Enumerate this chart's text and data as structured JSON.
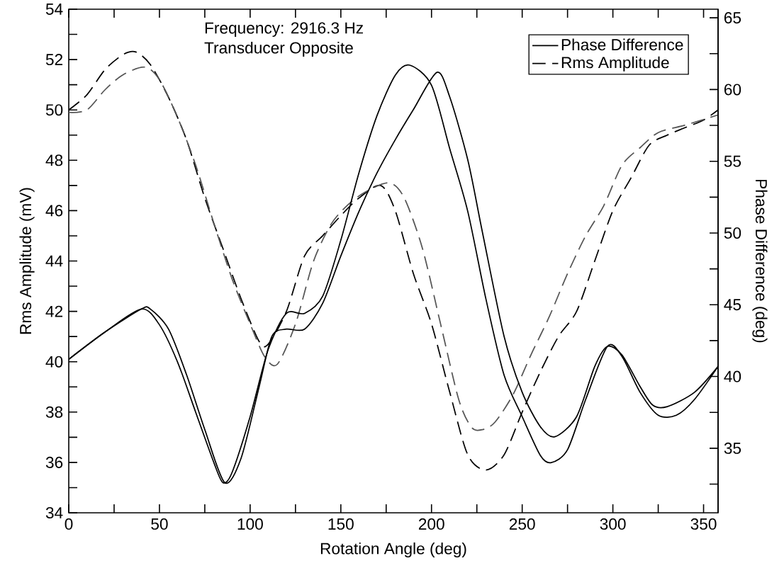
{
  "chart_data": {
    "type": "line",
    "xlabel": "Rotation Angle (deg)",
    "ylabel": "Rms Amplitude (mV)",
    "y2label": "Phase Difference (deg)",
    "annotations": [
      "Frequency:  2916.3 Hz",
      "Transducer Opposite"
    ],
    "xlim": [
      0,
      358
    ],
    "ylim": [
      34,
      54
    ],
    "y2lim": [
      30.5,
      65.6
    ],
    "xticks": [
      0,
      {
        "value": 25,
        "label": null
      },
      50,
      {
        "value": 75,
        "label": null
      },
      100,
      {
        "value": 125,
        "label": null
      },
      150,
      {
        "value": 175,
        "label": null
      },
      200,
      {
        "value": 225,
        "label": null
      },
      250,
      {
        "value": 275,
        "label": null
      },
      300,
      {
        "value": 325,
        "label": null
      },
      350
    ],
    "yticks": [
      34,
      {
        "value": 35,
        "label": null
      },
      36,
      {
        "value": 37,
        "label": null
      },
      38,
      {
        "value": 39,
        "label": null
      },
      40,
      {
        "value": 41,
        "label": null
      },
      42,
      {
        "value": 43,
        "label": null
      },
      44,
      {
        "value": 45,
        "label": null
      },
      46,
      {
        "value": 47,
        "label": null
      },
      48,
      {
        "value": 49,
        "label": null
      },
      50,
      {
        "value": 51,
        "label": null
      },
      52,
      {
        "value": 53,
        "label": null
      },
      54
    ],
    "y2ticks": [
      {
        "value": 32.5,
        "label": null
      },
      35,
      {
        "value": 37.5,
        "label": null
      },
      40,
      {
        "value": 42.5,
        "label": null
      },
      45,
      {
        "value": 47.5,
        "label": null
      },
      50,
      {
        "value": 52.5,
        "label": null
      },
      55,
      {
        "value": 57.5,
        "label": null
      },
      60,
      {
        "value": 62.5,
        "label": null
      },
      65
    ],
    "legend": "top right",
    "series": [
      {
        "name": "Phase Difference",
        "color": "#000000",
        "axis": "y2",
        "line_style": "solid",
        "x": [
          0,
          20,
          40,
          50,
          60,
          70,
          80,
          85,
          90,
          100,
          110,
          120,
          130,
          140,
          150,
          160,
          170,
          180,
          188,
          200,
          210,
          220,
          230,
          240,
          250,
          260,
          266,
          275,
          285,
          297,
          305,
          315,
          325,
          335,
          345,
          358
        ],
        "values": [
          41.2,
          43.1,
          44.7,
          43.6,
          41.0,
          37.5,
          34.0,
          32.6,
          33.3,
          37.2,
          41.9,
          44.4,
          44.4,
          45.6,
          49.5,
          54.2,
          58.2,
          61.0,
          61.7,
          60.3,
          55.9,
          51.5,
          45.4,
          40.1,
          37.2,
          34.5,
          34.0,
          34.9,
          38.4,
          42.1,
          41.4,
          38.9,
          37.3,
          37.3,
          38.4,
          40.7
        ]
      },
      {
        "color": "#000000",
        "axis": "y2",
        "line_style": "solid",
        "x": [
          0,
          20,
          40,
          45,
          55,
          65,
          75,
          86,
          95,
          105,
          112,
          120,
          130,
          140,
          150,
          160,
          170,
          180,
          190,
          203,
          210,
          220,
          228,
          240,
          250,
          260,
          268,
          280,
          290,
          297,
          305,
          315,
          322,
          330,
          345,
          358
        ],
        "values": [
          41.2,
          43.1,
          44.7,
          44.7,
          43.3,
          40.1,
          36.3,
          32.6,
          34.3,
          39.3,
          42.8,
          43.3,
          43.3,
          45.1,
          48.4,
          51.5,
          54.2,
          56.5,
          58.6,
          61.2,
          59.5,
          55.1,
          50.1,
          42.8,
          38.9,
          36.5,
          35.8,
          37.2,
          40.7,
          42.1,
          41.5,
          39.3,
          38.0,
          37.9,
          38.9,
          40.7
        ]
      },
      {
        "name": "Rms Amplitude",
        "color": "#000000",
        "axis": "y",
        "line_style": "dashed",
        "x": [
          0,
          10,
          20,
          30,
          37,
          45,
          55,
          65,
          75,
          85,
          95,
          105,
          110,
          120,
          130,
          140,
          150,
          160,
          172,
          180,
          190,
          200,
          210,
          220,
          230,
          240,
          250,
          260,
          270,
          280,
          290,
          300,
          310,
          320,
          330,
          340,
          350,
          358
        ],
        "values": [
          50.0,
          50.6,
          51.6,
          52.2,
          52.3,
          51.8,
          50.5,
          48.8,
          46.5,
          44.5,
          42.5,
          40.8,
          40.7,
          42.0,
          44.2,
          45.0,
          45.8,
          46.5,
          47.0,
          46.0,
          43.5,
          41.5,
          38.8,
          36.3,
          35.7,
          36.3,
          38.0,
          39.6,
          41.0,
          42.0,
          44.0,
          46.0,
          47.3,
          48.6,
          49.0,
          49.3,
          49.6,
          50.0
        ]
      },
      {
        "color": "#555555",
        "axis": "y",
        "line_style": "dashed",
        "x": [
          0,
          10,
          20,
          30,
          42,
          50,
          60,
          70,
          80,
          90,
          100,
          108,
          115,
          125,
          135,
          145,
          155,
          165,
          177,
          185,
          195,
          205,
          215,
          222,
          228,
          235,
          245,
          255,
          265,
          275,
          285,
          295,
          305,
          315,
          325,
          340,
          358
        ],
        "values": [
          49.9,
          50.0,
          50.8,
          51.4,
          51.7,
          51.2,
          49.7,
          47.8,
          45.5,
          43.3,
          41.5,
          40.2,
          39.9,
          41.5,
          44.0,
          45.5,
          46.3,
          46.8,
          47.1,
          46.5,
          44.5,
          41.5,
          38.5,
          37.4,
          37.3,
          37.6,
          38.7,
          40.3,
          41.8,
          43.5,
          45.0,
          46.2,
          47.8,
          48.5,
          49.1,
          49.4,
          49.8
        ]
      }
    ]
  }
}
